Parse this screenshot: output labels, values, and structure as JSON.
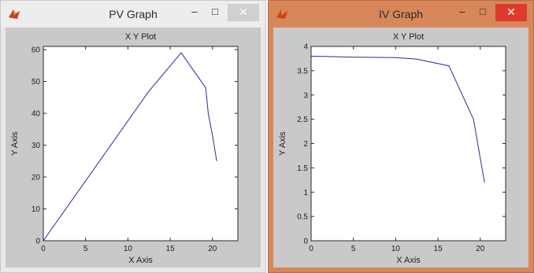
{
  "windows": [
    {
      "id": "pv",
      "title": "PV Graph",
      "icon": "matlab-figure-icon",
      "controls": {
        "minimize": "–",
        "maximize": "□",
        "close": "✕"
      },
      "chart_data": {
        "type": "line",
        "title": "X Y Plot",
        "xlabel": "X Axis",
        "ylabel": "Y Axis",
        "xlim": [
          0,
          23
        ],
        "ylim": [
          0,
          61
        ],
        "xticks": [
          0,
          5,
          10,
          15,
          20
        ],
        "yticks": [
          0,
          10,
          20,
          30,
          40,
          50,
          60
        ],
        "line_color": "#1f2d9c",
        "series": [
          {
            "x": [
              0,
              12.5,
              16.3,
              19.2,
              19.5,
              20.0,
              20.5
            ],
            "y": [
              0,
              47,
              59,
              48,
              40,
              33,
              25
            ]
          }
        ]
      }
    },
    {
      "id": "iv",
      "title": "IV Graph",
      "icon": "matlab-figure-icon",
      "controls": {
        "minimize": "–",
        "maximize": "□",
        "close": "✕"
      },
      "chart_data": {
        "type": "line",
        "title": "X Y Plot",
        "xlabel": "X Axis",
        "ylabel": "Y Axis",
        "xlim": [
          0,
          23
        ],
        "ylim": [
          0,
          4
        ],
        "xticks": [
          0,
          5,
          10,
          15,
          20
        ],
        "yticks": [
          0,
          0.5,
          1,
          1.5,
          2,
          2.5,
          3,
          3.5,
          4
        ],
        "line_color": "#1f2d9c",
        "series": [
          {
            "x": [
              0,
              5,
              10,
              12.5,
              16.3,
              19.2,
              19.8,
              20.5
            ],
            "y": [
              3.8,
              3.78,
              3.77,
              3.74,
              3.6,
              2.5,
              1.9,
              1.2
            ]
          }
        ]
      }
    }
  ]
}
